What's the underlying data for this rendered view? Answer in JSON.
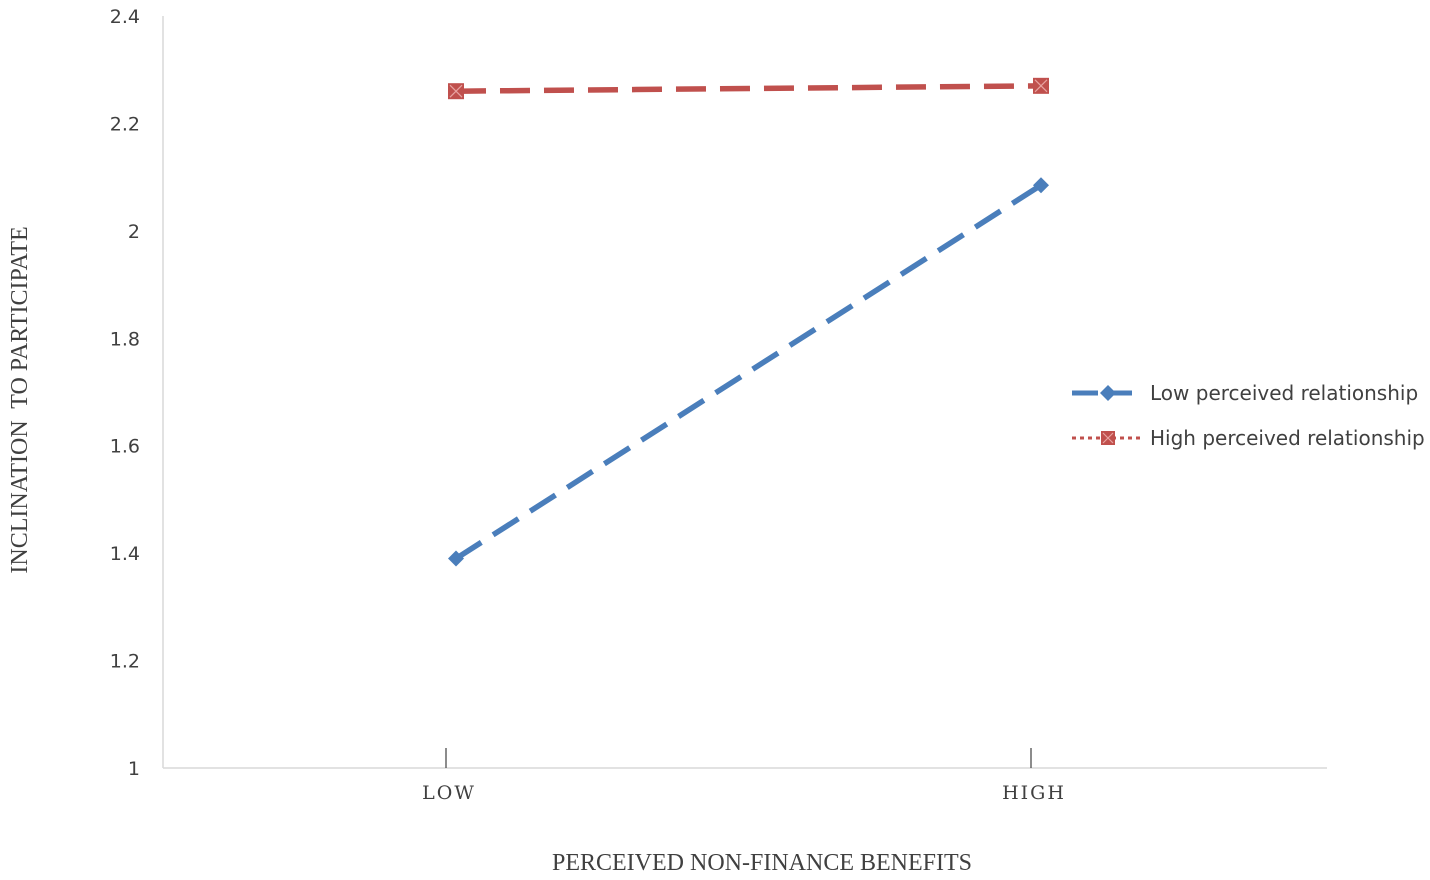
{
  "chart_data": {
    "type": "line",
    "title": "",
    "xlabel": "PERCEIVED NON-FINANCE BENEFITS",
    "ylabel": "INCLINATION  TO PARTICIPATE",
    "categories": [
      "LOW",
      "HIGH"
    ],
    "ylim": [
      1,
      2.4
    ],
    "yticks": [
      "1",
      "1.2",
      "1.4",
      "1.6",
      "1.8",
      "2",
      "2.2",
      "2.4"
    ],
    "grid": false,
    "legend_position": "right",
    "series": [
      {
        "name": "Low perceived relationship",
        "values": [
          1.39,
          2.085
        ],
        "color": "#4a7ebb",
        "line_style": "dashed",
        "marker": "diamond"
      },
      {
        "name": "High perceived relationship",
        "values": [
          2.26,
          2.27
        ],
        "color": "#c0504d",
        "line_style": "dashed",
        "legend_line_style": "dotted",
        "marker": "x-square"
      }
    ]
  }
}
